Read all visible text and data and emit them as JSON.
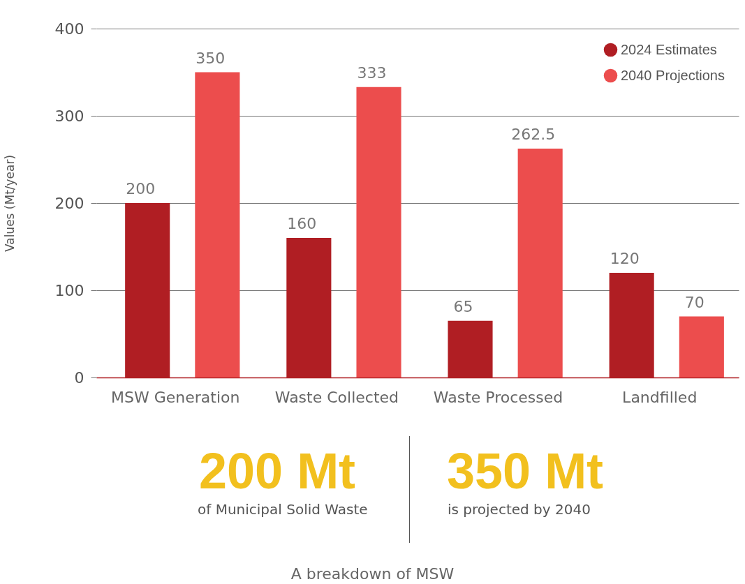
{
  "chart_data": {
    "type": "bar",
    "ylabel": "Values (Mt/year)",
    "categories": [
      "MSW Generation",
      "Waste Collected",
      "Waste Processed",
      "Landfilled"
    ],
    "series": [
      {
        "name": "2024 Estimates",
        "color": "#b01e23",
        "values": [
          200,
          160,
          65,
          120
        ]
      },
      {
        "name": "2040 Projections",
        "color": "#ec4d4d",
        "values": [
          350,
          333,
          262.5,
          70
        ]
      }
    ],
    "ylim": [
      0,
      400
    ],
    "yticks": [
      0,
      100,
      200,
      300,
      400
    ],
    "grid": "y",
    "legend": "top right",
    "data_labels": true,
    "annotations": [
      "200 Mt",
      "of Municipal Solid Waste",
      "350 Mt",
      "is projected by 2040",
      "A breakdown of MSW"
    ]
  }
}
